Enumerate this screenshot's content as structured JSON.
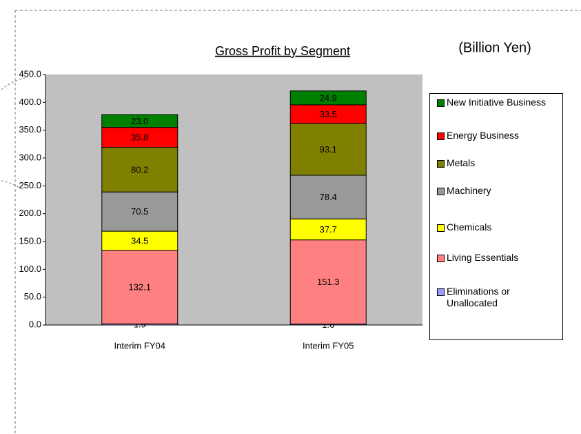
{
  "chart_data": {
    "type": "stacked_bar",
    "title": "Gross Profit by Segment",
    "unit_note": "(Billion Yen)",
    "categories": [
      "Interim FY04",
      "Interim FY05"
    ],
    "series": [
      {
        "name": "Eliminations or Unallocated",
        "color": "#9999ff",
        "values": [
          1.9,
          1.6
        ]
      },
      {
        "name": "Living Essentials",
        "color": "#ff8080",
        "values": [
          132.1,
          151.3
        ]
      },
      {
        "name": "Chemicals",
        "color": "#ffff00",
        "values": [
          34.5,
          37.7
        ]
      },
      {
        "name": "Machinery",
        "color": "#999999",
        "values": [
          70.5,
          78.4
        ]
      },
      {
        "name": "Metals",
        "color": "#808000",
        "values": [
          80.2,
          93.1
        ]
      },
      {
        "name": "Energy Business",
        "color": "#ff0000",
        "values": [
          35.8,
          33.5
        ]
      },
      {
        "name": "New Initiative Business",
        "color": "#008000",
        "values": [
          23.0,
          24.9
        ],
        "value_labels": [
          "23.0",
          "24.9"
        ]
      }
    ],
    "ylim": [
      0,
      450
    ],
    "yticks": [
      {
        "value": 0,
        "label": "0.0"
      },
      {
        "value": 50,
        "label": "50.0"
      },
      {
        "value": 100,
        "label": "100.0"
      },
      {
        "value": 150,
        "label": "150.0"
      },
      {
        "value": 200,
        "label": "200.0"
      },
      {
        "value": 250,
        "label": "250.0"
      },
      {
        "value": 300,
        "label": "300.0"
      },
      {
        "value": 350,
        "label": "350.0"
      },
      {
        "value": 400,
        "label": "400.0"
      },
      {
        "value": 450,
        "label": "450.0"
      }
    ],
    "legend": "right"
  }
}
